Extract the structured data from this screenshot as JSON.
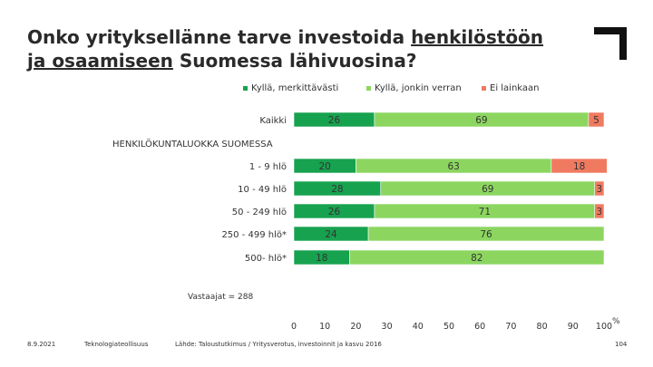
{
  "title": {
    "part1": "Onko yrityksellänne tarve investoida ",
    "underline1": "henkilöstöön",
    "underline2": "ja osaamiseen",
    "part2": " Suomessa lähivuosina?"
  },
  "footer": {
    "date": "8.9.2021",
    "org": "Teknologiateollisuus",
    "source": "Lähde: Taloustutkimus / Yritysverotus, investoinnit ja kasvu 2016",
    "page": "104"
  },
  "footnote": "Vastaajat = 288",
  "unit_label": "%",
  "colors": {
    "dark_green": "#17a24f",
    "light_green": "#8cd660",
    "orange": "#f07a60"
  },
  "chart_data": {
    "type": "bar",
    "orientation": "horizontal",
    "stacked": true,
    "legend_position": "top",
    "section_label": "HENKILÖKUNTALUOKKA SUOMESSA",
    "categories": [
      "Kaikki",
      "1 - 9 hlö",
      "10 - 49 hlö",
      "50 - 249 hlö",
      "250 - 499 hlö*",
      "500- hlö*"
    ],
    "series": [
      {
        "name": "Kyllä, merkittävästi",
        "color": "#17a24f",
        "values": [
          26,
          20,
          28,
          26,
          24,
          18
        ]
      },
      {
        "name": "Kyllä, jonkin verran",
        "color": "#8cd660",
        "values": [
          69,
          63,
          69,
          71,
          76,
          82
        ]
      },
      {
        "name": "Ei lainkaan",
        "color": "#f07a60",
        "values": [
          5,
          18,
          3,
          3,
          0,
          0
        ]
      }
    ],
    "xlim": [
      0,
      100
    ],
    "xticks": [
      0,
      10,
      20,
      30,
      40,
      50,
      60,
      70,
      80,
      90,
      100
    ],
    "grid": false
  }
}
